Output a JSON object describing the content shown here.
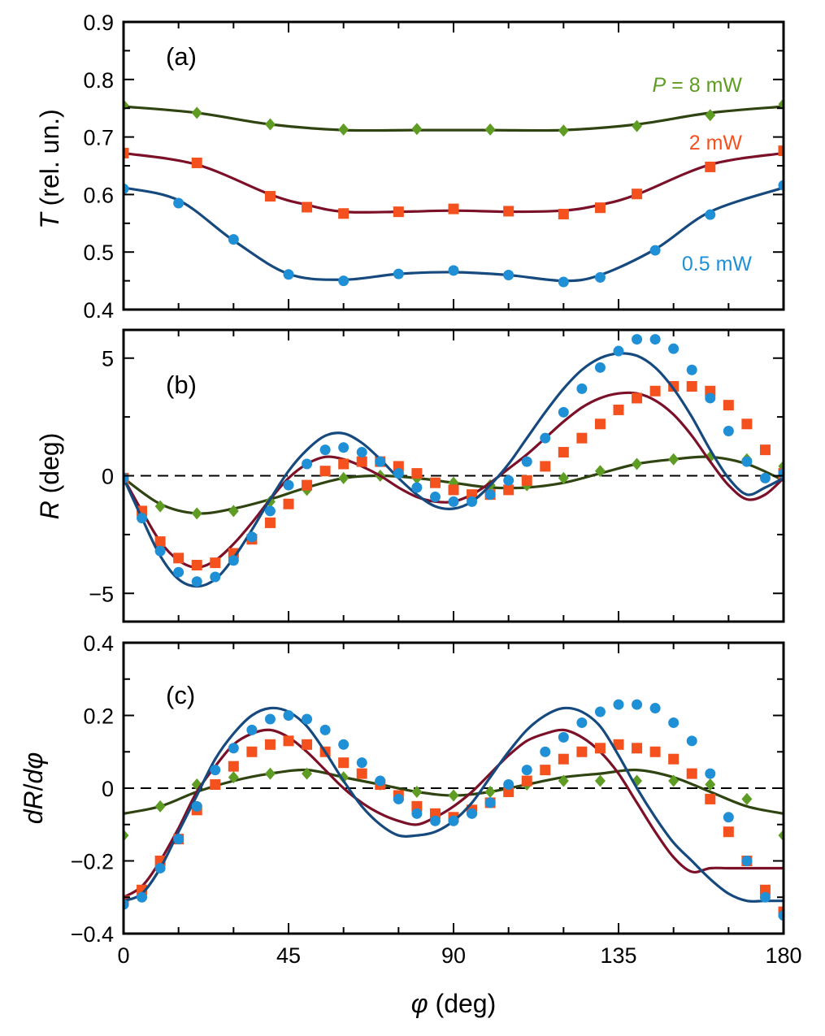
{
  "colors": {
    "blue_marker": "#1f8fd6",
    "blue_line": "#164a7f",
    "red_marker": "#f4511e",
    "red_line": "#7b1028",
    "green_marker": "#5e9c24",
    "green_line": "#2f4410",
    "zero_line": "#000000"
  },
  "figure": {
    "xlabel": {
      "symbol": "φ",
      "rest": " (deg)"
    }
  },
  "series_labels": {
    "p8": {
      "prefix": "P",
      "rest": " = 8 mW"
    },
    "p2": "2 mW",
    "p05": "0.5 mW"
  },
  "chart_data": [
    {
      "type": "scatter",
      "panel": "(a)",
      "ylabel": {
        "symbol": "T",
        "rest": " (rel. un.)"
      },
      "xlim": [
        0,
        180
      ],
      "ylim": [
        0.4,
        0.9
      ],
      "xticks": [
        0,
        45,
        90,
        135,
        180
      ],
      "yticks": [
        0.4,
        0.5,
        0.6,
        0.7,
        0.8,
        0.9
      ],
      "ytick_labels": [
        "0.4",
        "0.5",
        "0.6",
        "0.7",
        "0.8",
        "0.9"
      ],
      "zero_line": false,
      "series": [
        {
          "name": "8 mW",
          "marker": "diamond",
          "marker_color": "#5e9c24",
          "line_color": "#2f4410",
          "x": [
            0,
            20,
            40,
            60,
            80,
            100,
            120,
            140,
            160,
            180
          ],
          "y": [
            0.755,
            0.742,
            0.722,
            0.713,
            0.714,
            0.713,
            0.711,
            0.719,
            0.738,
            0.757
          ],
          "fit_y": [
            0.753,
            0.742,
            0.722,
            0.712,
            0.712,
            0.712,
            0.712,
            0.722,
            0.742,
            0.753
          ]
        },
        {
          "name": "2 mW",
          "marker": "square",
          "marker_color": "#f4511e",
          "line_color": "#7b1028",
          "x": [
            0,
            20,
            40,
            50,
            60,
            75,
            90,
            105,
            120,
            130,
            140,
            160,
            180
          ],
          "y": [
            0.672,
            0.655,
            0.597,
            0.578,
            0.567,
            0.57,
            0.575,
            0.571,
            0.566,
            0.577,
            0.601,
            0.648,
            0.676
          ],
          "fit_y": [
            0.672,
            0.652,
            0.6,
            0.582,
            0.57,
            0.57,
            0.572,
            0.57,
            0.572,
            0.582,
            0.6,
            0.652,
            0.672
          ]
        },
        {
          "name": "0.5 mW",
          "marker": "circle",
          "marker_color": "#1f8fd6",
          "line_color": "#164a7f",
          "x": [
            0,
            15,
            30,
            45,
            60,
            75,
            90,
            105,
            120,
            130,
            145,
            160,
            180
          ],
          "y": [
            0.61,
            0.585,
            0.522,
            0.461,
            0.45,
            0.462,
            0.468,
            0.46,
            0.448,
            0.456,
            0.503,
            0.565,
            0.616
          ],
          "fit_y": [
            0.612,
            0.59,
            0.52,
            0.462,
            0.452,
            0.462,
            0.465,
            0.46,
            0.45,
            0.46,
            0.505,
            0.57,
            0.612
          ]
        }
      ]
    },
    {
      "type": "scatter",
      "panel": "(b)",
      "ylabel": {
        "symbol": "R",
        "rest": " (deg)"
      },
      "xlim": [
        0,
        180
      ],
      "ylim": [
        -6.2,
        6.2
      ],
      "xticks": [
        0,
        45,
        90,
        135,
        180
      ],
      "yticks": [
        -5,
        0,
        5
      ],
      "ytick_labels": [
        "−5",
        "0",
        "5"
      ],
      "zero_line": true,
      "series": [
        {
          "name": "8 mW",
          "marker": "diamond",
          "marker_color": "#5e9c24",
          "line_color": "#2f4410",
          "x": [
            0,
            10,
            20,
            30,
            40,
            50,
            60,
            70,
            80,
            90,
            100,
            110,
            120,
            130,
            140,
            150,
            160,
            170,
            180
          ],
          "y": [
            -0.2,
            -1.3,
            -1.6,
            -1.5,
            -1.1,
            -0.6,
            -0.1,
            0.0,
            -0.1,
            -0.3,
            -0.4,
            -0.4,
            -0.1,
            0.2,
            0.5,
            0.7,
            0.8,
            0.7,
            0.4
          ],
          "fit_y": [
            -0.1,
            -1.2,
            -1.6,
            -1.4,
            -1.0,
            -0.5,
            -0.1,
            0.0,
            -0.1,
            -0.3,
            -0.5,
            -0.5,
            -0.3,
            0.1,
            0.5,
            0.7,
            0.8,
            0.5,
            -0.2
          ]
        },
        {
          "name": "2 mW",
          "marker": "square",
          "marker_color": "#f4511e",
          "line_color": "#7b1028",
          "x": [
            0,
            5,
            10,
            15,
            20,
            25,
            30,
            35,
            40,
            45,
            50,
            55,
            60,
            65,
            70,
            75,
            80,
            85,
            90,
            95,
            100,
            105,
            110,
            115,
            120,
            125,
            130,
            135,
            140,
            145,
            150,
            155,
            160,
            165,
            170,
            175,
            180
          ],
          "y": [
            -0.1,
            -1.5,
            -2.8,
            -3.5,
            -3.8,
            -3.7,
            -3.3,
            -2.7,
            -2.0,
            -1.2,
            -0.4,
            0.2,
            0.5,
            0.6,
            0.6,
            0.4,
            0.1,
            -0.3,
            -0.6,
            -0.8,
            -0.8,
            -0.6,
            -0.2,
            0.4,
            1.0,
            1.6,
            2.2,
            2.8,
            3.3,
            3.6,
            3.8,
            3.8,
            3.6,
            3.0,
            2.2,
            1.1,
            0.1
          ],
          "fit_y": [
            -0.1,
            -1.5,
            -2.8,
            -3.6,
            -3.9,
            -3.6,
            -2.9,
            -2.0,
            -1.0,
            -0.1,
            0.5,
            0.8,
            0.7,
            0.4,
            0.0,
            -0.5,
            -0.9,
            -1.1,
            -1.1,
            -0.8,
            -0.3,
            0.3,
            0.9,
            1.6,
            2.3,
            2.9,
            3.3,
            3.5,
            3.5,
            3.2,
            2.6,
            1.7,
            0.6,
            -0.4,
            -1.0,
            -0.8,
            -0.1
          ]
        },
        {
          "name": "0.5 mW",
          "marker": "circle",
          "marker_color": "#1f8fd6",
          "line_color": "#164a7f",
          "x": [
            0,
            5,
            10,
            15,
            20,
            25,
            30,
            35,
            40,
            45,
            50,
            55,
            60,
            65,
            70,
            75,
            80,
            85,
            90,
            95,
            100,
            105,
            110,
            115,
            120,
            125,
            130,
            135,
            140,
            145,
            150,
            155,
            160,
            165,
            170,
            175,
            180
          ],
          "y": [
            -0.1,
            -1.8,
            -3.2,
            -4.1,
            -4.5,
            -4.3,
            -3.6,
            -2.6,
            -1.5,
            -0.4,
            0.5,
            1.1,
            1.2,
            1.0,
            0.6,
            0.1,
            -0.5,
            -0.9,
            -1.1,
            -1.1,
            -0.8,
            -0.2,
            0.6,
            1.6,
            2.7,
            3.7,
            4.6,
            5.3,
            5.8,
            5.8,
            5.4,
            4.5,
            3.3,
            1.9,
            0.6,
            -0.1,
            0.1
          ],
          "fit_y": [
            -0.1,
            -1.8,
            -3.4,
            -4.4,
            -4.7,
            -4.4,
            -3.5,
            -2.3,
            -1.0,
            0.2,
            1.1,
            1.7,
            1.8,
            1.4,
            0.7,
            -0.1,
            -0.8,
            -1.3,
            -1.4,
            -1.1,
            -0.4,
            0.5,
            1.6,
            2.7,
            3.7,
            4.5,
            5.0,
            5.2,
            5.1,
            4.6,
            3.7,
            2.5,
            1.1,
            -0.1,
            -0.8,
            -0.5,
            -0.1
          ]
        }
      ]
    },
    {
      "type": "scatter",
      "panel": "(c)",
      "ylabel": {
        "d1": "d",
        "symbol": "R",
        "slash": "/",
        "d2": "d",
        "symbol2": "φ"
      },
      "xlim": [
        0,
        180
      ],
      "ylim": [
        -0.4,
        0.4
      ],
      "xticks": [
        0,
        45,
        90,
        135,
        180
      ],
      "xtick_labels": [
        "0",
        "45",
        "90",
        "135",
        "180"
      ],
      "yticks": [
        -0.4,
        -0.2,
        0,
        0.2,
        0.4
      ],
      "ytick_labels": [
        "−0.4",
        "−0.2",
        "0",
        "0.2",
        "0.4"
      ],
      "zero_line": true,
      "series": [
        {
          "name": "8 mW",
          "marker": "diamond",
          "marker_color": "#5e9c24",
          "line_color": "#2f4410",
          "x": [
            0,
            10,
            20,
            30,
            40,
            50,
            60,
            70,
            80,
            90,
            100,
            110,
            120,
            130,
            140,
            150,
            160,
            170,
            180
          ],
          "y": [
            -0.13,
            -0.05,
            0.01,
            0.03,
            0.04,
            0.04,
            0.03,
            0.01,
            -0.01,
            -0.02,
            -0.01,
            0.01,
            0.02,
            0.02,
            0.02,
            0.02,
            0.01,
            -0.03,
            -0.13
          ],
          "fit_y": [
            -0.07,
            -0.05,
            -0.01,
            0.02,
            0.04,
            0.05,
            0.03,
            0.01,
            -0.01,
            -0.02,
            -0.01,
            0.01,
            0.03,
            0.04,
            0.05,
            0.03,
            -0.01,
            -0.05,
            -0.07
          ]
        },
        {
          "name": "2 mW",
          "marker": "square",
          "marker_color": "#f4511e",
          "line_color": "#7b1028",
          "x": [
            0,
            5,
            10,
            15,
            20,
            25,
            30,
            35,
            40,
            45,
            50,
            55,
            60,
            65,
            70,
            75,
            80,
            85,
            90,
            95,
            100,
            105,
            110,
            115,
            120,
            125,
            130,
            135,
            140,
            145,
            150,
            155,
            160,
            165,
            170,
            175,
            180
          ],
          "y": [
            -0.31,
            -0.28,
            -0.2,
            -0.14,
            -0.06,
            0.01,
            0.06,
            0.1,
            0.12,
            0.13,
            0.12,
            0.1,
            0.07,
            0.04,
            0.01,
            -0.02,
            -0.05,
            -0.07,
            -0.08,
            -0.06,
            -0.04,
            -0.01,
            0.02,
            0.05,
            0.08,
            0.1,
            0.11,
            0.12,
            0.11,
            0.1,
            0.08,
            0.04,
            -0.03,
            -0.12,
            -0.2,
            -0.28,
            -0.34
          ],
          "fit_y": [
            -0.3,
            -0.27,
            -0.2,
            -0.11,
            -0.01,
            0.06,
            0.12,
            0.15,
            0.16,
            0.14,
            0.1,
            0.05,
            0.0,
            -0.04,
            -0.07,
            -0.09,
            -0.1,
            -0.08,
            -0.05,
            -0.01,
            0.04,
            0.09,
            0.13,
            0.15,
            0.16,
            0.14,
            0.1,
            0.04,
            -0.04,
            -0.12,
            -0.19,
            -0.23,
            -0.22,
            -0.22,
            -0.22,
            -0.22,
            -0.22
          ]
        },
        {
          "name": "0.5 mW",
          "marker": "circle",
          "marker_color": "#1f8fd6",
          "line_color": "#164a7f",
          "x": [
            0,
            5,
            10,
            15,
            20,
            25,
            30,
            35,
            40,
            45,
            50,
            55,
            60,
            65,
            70,
            75,
            80,
            85,
            90,
            95,
            100,
            105,
            110,
            115,
            120,
            125,
            130,
            135,
            140,
            145,
            150,
            155,
            160,
            165,
            170,
            175,
            180
          ],
          "y": [
            -0.32,
            -0.3,
            -0.22,
            -0.14,
            -0.05,
            0.05,
            0.11,
            0.16,
            0.19,
            0.2,
            0.19,
            0.16,
            0.12,
            0.07,
            0.02,
            -0.03,
            -0.07,
            -0.09,
            -0.09,
            -0.07,
            -0.04,
            0.01,
            0.05,
            0.1,
            0.14,
            0.18,
            0.21,
            0.23,
            0.23,
            0.22,
            0.18,
            0.13,
            0.04,
            -0.08,
            -0.2,
            -0.3,
            -0.35
          ],
          "fit_y": [
            -0.31,
            -0.29,
            -0.22,
            -0.12,
            -0.02,
            0.08,
            0.15,
            0.2,
            0.22,
            0.21,
            0.17,
            0.1,
            0.02,
            -0.05,
            -0.1,
            -0.13,
            -0.13,
            -0.12,
            -0.09,
            -0.04,
            0.03,
            0.1,
            0.16,
            0.2,
            0.22,
            0.21,
            0.17,
            0.09,
            0.0,
            -0.08,
            -0.15,
            -0.2,
            -0.25,
            -0.29,
            -0.31,
            -0.31,
            -0.31
          ]
        }
      ]
    }
  ]
}
